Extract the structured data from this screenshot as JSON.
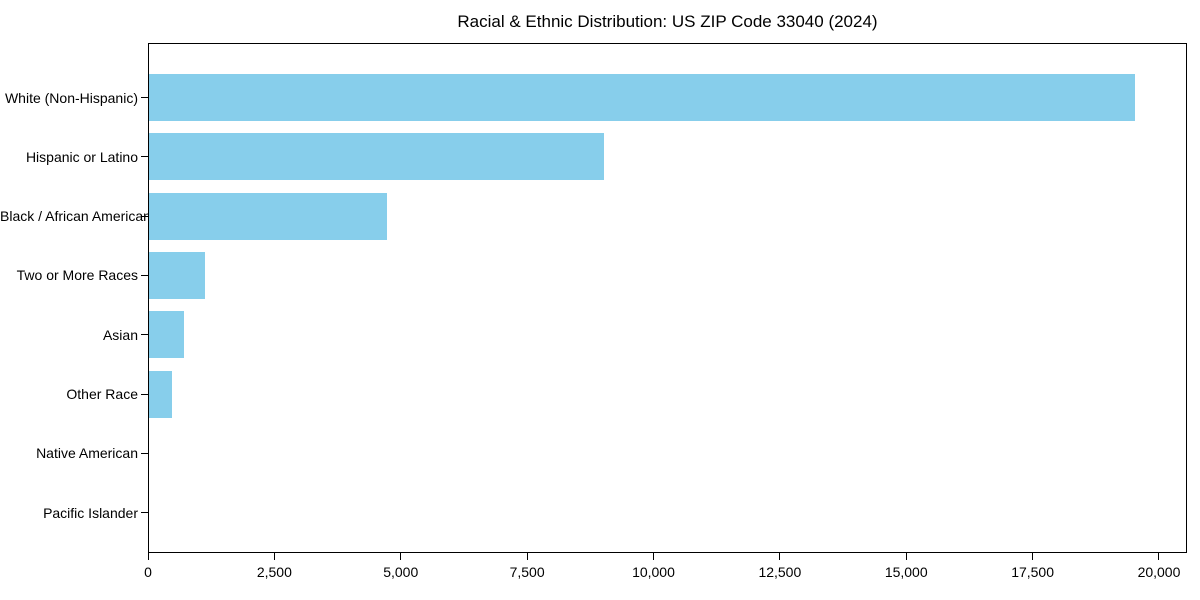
{
  "chart_data": {
    "type": "bar",
    "orientation": "horizontal",
    "title": "Racial & Ethnic Distribution: US ZIP Code 33040 (2024)",
    "categories": [
      "White (Non-Hispanic)",
      "Hispanic or Latino",
      "Black / African American",
      "Two or More Races",
      "Asian",
      "Other Race",
      "Native American",
      "Pacific Islander"
    ],
    "values": [
      19500,
      9000,
      4700,
      1100,
      700,
      450,
      0,
      0
    ],
    "title_note": "",
    "xlabel": "",
    "ylabel": "",
    "xlim": [
      0,
      20554
    ],
    "xticks": [
      0,
      2500,
      5000,
      7500,
      10000,
      12500,
      15000,
      17500,
      20000
    ],
    "xtick_labels": [
      "0",
      "2,500",
      "5,000",
      "7,500",
      "10,000",
      "12,500",
      "15,000",
      "17,500",
      "20,000"
    ],
    "bar_color": "#87CEEB",
    "axis_color": "#000000",
    "background_color": "#ffffff",
    "grid": false,
    "legend": null
  }
}
